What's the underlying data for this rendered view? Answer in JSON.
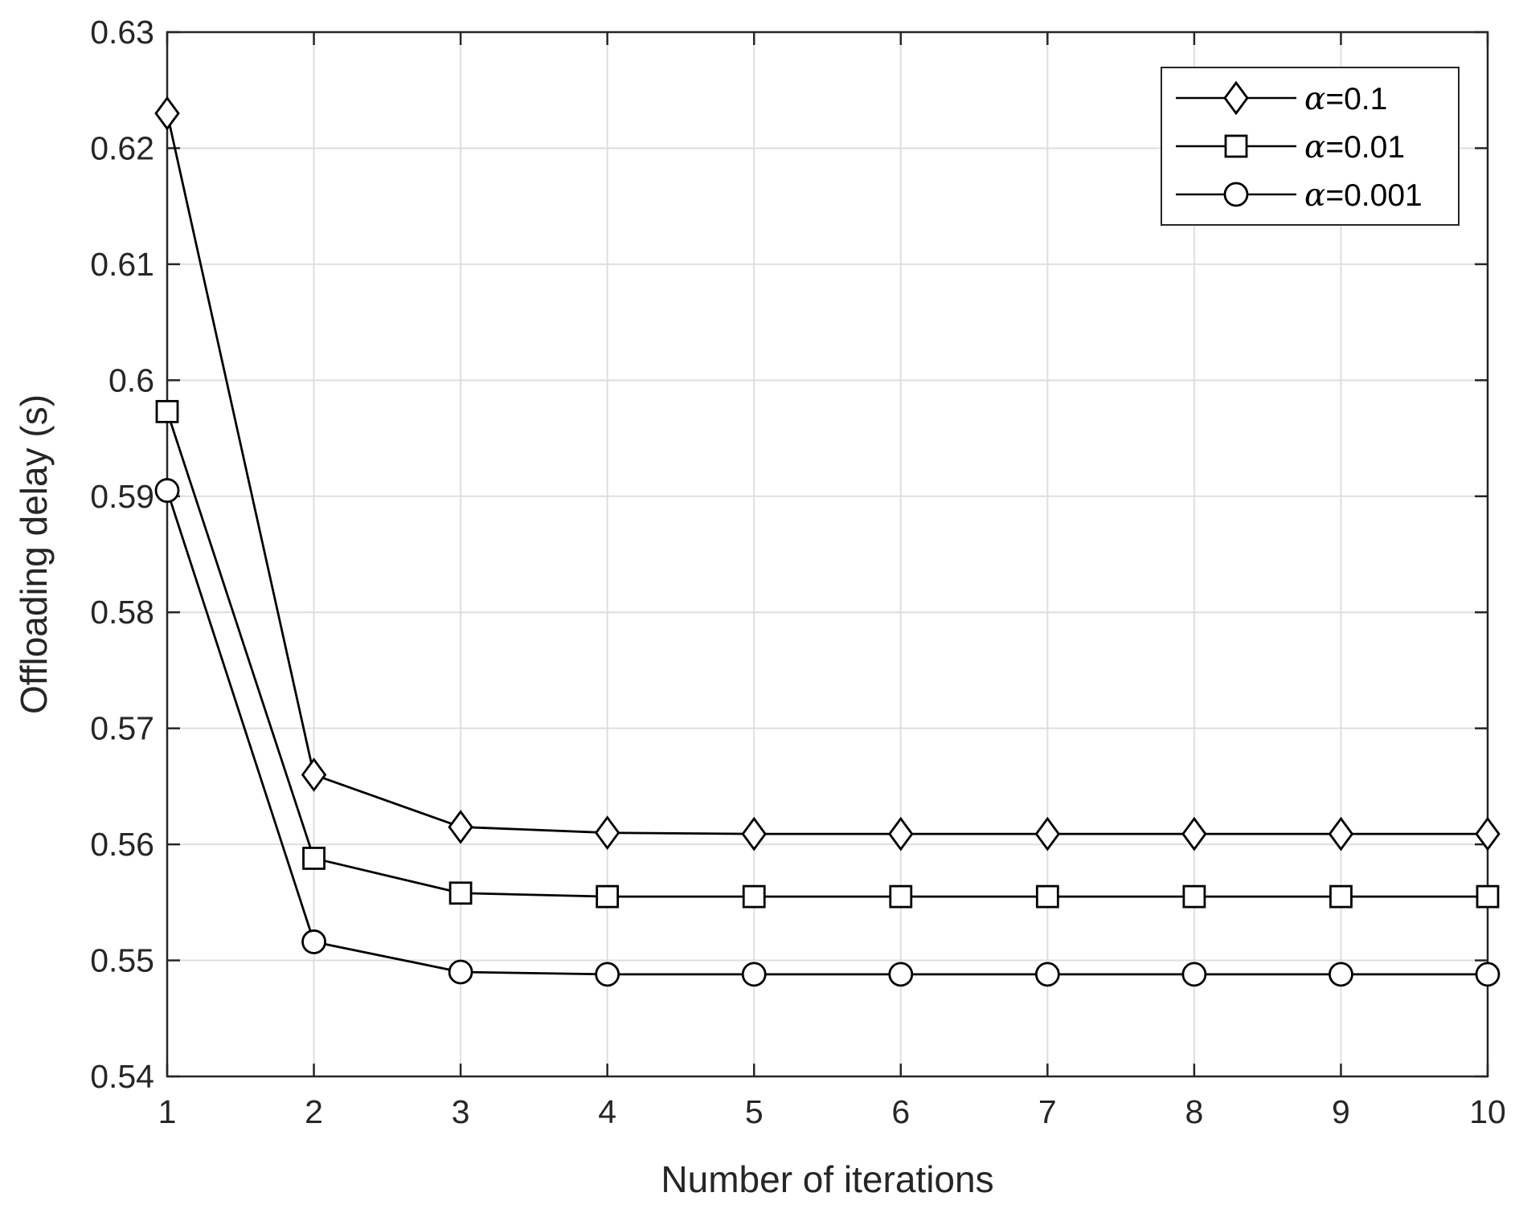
{
  "chart_data": {
    "type": "line",
    "title": "",
    "xlabel": "Number of iterations",
    "ylabel": "Offloading delay (s)",
    "xlim": [
      1,
      10
    ],
    "ylim": [
      0.54,
      0.63
    ],
    "xticks": [
      1,
      2,
      3,
      4,
      5,
      6,
      7,
      8,
      9,
      10
    ],
    "yticks": [
      0.54,
      0.55,
      0.56,
      0.57,
      0.58,
      0.59,
      0.6,
      0.61,
      0.62,
      0.63
    ],
    "xtick_labels": [
      "1",
      "2",
      "3",
      "4",
      "5",
      "6",
      "7",
      "8",
      "9",
      "10"
    ],
    "ytick_labels": [
      "0.54",
      "0.55",
      "0.56",
      "0.57",
      "0.58",
      "0.59",
      "0.6",
      "0.61",
      "0.62",
      "0.63"
    ],
    "grid": true,
    "legend_position": "top-right",
    "x": [
      1,
      2,
      3,
      4,
      5,
      6,
      7,
      8,
      9,
      10
    ],
    "series": [
      {
        "name": "α=0.1",
        "name_symbol": "α",
        "name_value": "=0.1",
        "marker": "diamond",
        "values": [
          0.623,
          0.566,
          0.5615,
          0.561,
          0.5609,
          0.5609,
          0.5609,
          0.5609,
          0.5609,
          0.5609
        ]
      },
      {
        "name": "α=0.01",
        "name_symbol": "α",
        "name_value": "=0.01",
        "marker": "square",
        "values": [
          0.5973,
          0.5588,
          0.5558,
          0.5555,
          0.5555,
          0.5555,
          0.5555,
          0.5555,
          0.5555,
          0.5555
        ]
      },
      {
        "name": "α=0.001",
        "name_symbol": "α",
        "name_value": "=0.001",
        "marker": "circle",
        "values": [
          0.5905,
          0.5516,
          0.549,
          0.5488,
          0.5488,
          0.5488,
          0.5488,
          0.5488,
          0.5488,
          0.5488
        ]
      }
    ],
    "colors": {
      "line": "#000000",
      "grid": "#dedede",
      "axis": "#262626",
      "background": "#ffffff"
    }
  }
}
